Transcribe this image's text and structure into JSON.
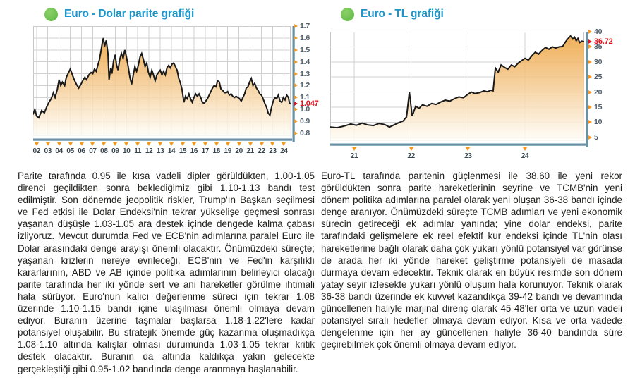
{
  "colors": {
    "accent_blue": "#1d95c9",
    "bullet_green": "#63bd47",
    "tick_orange": "#f5991e",
    "value_red": "#e30f1b",
    "line": "#1a1a1a",
    "grid": "#d2d2d2",
    "plot_border": "#c6c6c6",
    "frame_dark": "#5b7d93",
    "frame_light": "#cfe5f0",
    "fill_top": "#eca13c",
    "fill_mid": "#f5cd96",
    "fill_bottom": "#fffef9"
  },
  "chart_data": [
    {
      "type": "area",
      "id": "eur-usd",
      "title": "Euro - Dolar parite grafiği",
      "current_value": 1.047,
      "current_value_label": "1.047",
      "x_tick_labels": [
        "02",
        "03",
        "04",
        "05",
        "06",
        "07",
        "08",
        "09",
        "10",
        "11",
        "12",
        "13",
        "14",
        "15",
        "16",
        "17",
        "18",
        "19",
        "20",
        "21",
        "22",
        "23",
        "24"
      ],
      "x_tick_values": [
        2002,
        2003,
        2004,
        2005,
        2006,
        2007,
        2008,
        2009,
        2010,
        2011,
        2012,
        2013,
        2014,
        2015,
        2016,
        2017,
        2018,
        2019,
        2020,
        2021,
        2022,
        2023,
        2024
      ],
      "y_tick_values": [
        1.7,
        1.6,
        1.5,
        1.4,
        1.3,
        1.2,
        1.1,
        1.0,
        0.9,
        0.8
      ],
      "y_tick_labels": [
        "1.7",
        "1.6",
        "1.5",
        "1.4",
        "1.3",
        "1.2",
        "1.1",
        "1.0",
        "0.9",
        "0.8"
      ],
      "x_domain": [
        2001.7,
        2024.6
      ],
      "y_domain": [
        0.776,
        1.7
      ],
      "grid": true,
      "x": [
        2001.7,
        2001.85,
        2002.0,
        2002.2,
        2002.45,
        2002.7,
        2002.9,
        2003.1,
        2003.3,
        2003.5,
        2003.65,
        2003.85,
        2004.0,
        2004.15,
        2004.3,
        2004.5,
        2004.65,
        2004.85,
        2005.0,
        2005.15,
        2005.35,
        2005.55,
        2005.75,
        2005.95,
        2006.1,
        2006.3,
        2006.45,
        2006.65,
        2006.85,
        2007.0,
        2007.15,
        2007.3,
        2007.45,
        2007.6,
        2007.75,
        2007.85,
        2007.95,
        2008.05,
        2008.2,
        2008.35,
        2008.45,
        2008.6,
        2008.7,
        2008.85,
        2009.0,
        2009.1,
        2009.25,
        2009.4,
        2009.55,
        2009.7,
        2009.85,
        2010.0,
        2010.15,
        2010.3,
        2010.45,
        2010.6,
        2010.75,
        2010.9,
        2011.05,
        2011.2,
        2011.35,
        2011.5,
        2011.65,
        2011.8,
        2011.95,
        2012.1,
        2012.25,
        2012.4,
        2012.55,
        2012.7,
        2012.85,
        2013.0,
        2013.15,
        2013.3,
        2013.45,
        2013.6,
        2013.75,
        2013.9,
        2014.05,
        2014.2,
        2014.35,
        2014.5,
        2014.65,
        2014.8,
        2014.95,
        2015.1,
        2015.25,
        2015.4,
        2015.55,
        2015.7,
        2015.85,
        2016.0,
        2016.15,
        2016.3,
        2016.45,
        2016.6,
        2016.75,
        2016.9,
        2017.05,
        2017.2,
        2017.35,
        2017.5,
        2017.65,
        2017.8,
        2017.95,
        2018.1,
        2018.25,
        2018.4,
        2018.55,
        2018.7,
        2018.85,
        2019.0,
        2019.15,
        2019.3,
        2019.45,
        2019.6,
        2019.75,
        2019.9,
        2020.05,
        2020.2,
        2020.35,
        2020.5,
        2020.65,
        2020.8,
        2020.95,
        2021.1,
        2021.25,
        2021.4,
        2021.55,
        2021.7,
        2021.85,
        2022.0,
        2022.15,
        2022.3,
        2022.45,
        2022.6,
        2022.75,
        2022.9,
        2023.05,
        2023.2,
        2023.35,
        2023.5,
        2023.65,
        2023.8,
        2023.95,
        2024.1,
        2024.25,
        2024.4,
        2024.5,
        2024.6
      ],
      "y": [
        0.96,
        1.0,
        0.945,
        0.93,
        0.99,
        0.97,
        1.02,
        1.06,
        1.09,
        1.14,
        1.1,
        1.17,
        1.25,
        1.2,
        1.23,
        1.2,
        1.27,
        1.31,
        1.34,
        1.3,
        1.25,
        1.21,
        1.18,
        1.21,
        1.24,
        1.27,
        1.25,
        1.29,
        1.31,
        1.3,
        1.34,
        1.32,
        1.37,
        1.42,
        1.5,
        1.56,
        1.6,
        1.53,
        1.58,
        1.47,
        1.25,
        1.35,
        1.3,
        1.41,
        1.46,
        1.38,
        1.33,
        1.42,
        1.47,
        1.43,
        1.5,
        1.44,
        1.36,
        1.27,
        1.21,
        1.29,
        1.36,
        1.32,
        1.37,
        1.44,
        1.47,
        1.42,
        1.36,
        1.39,
        1.31,
        1.27,
        1.33,
        1.29,
        1.24,
        1.29,
        1.31,
        1.33,
        1.29,
        1.32,
        1.29,
        1.35,
        1.37,
        1.35,
        1.38,
        1.39,
        1.36,
        1.33,
        1.26,
        1.22,
        1.16,
        1.06,
        1.11,
        1.09,
        1.13,
        1.09,
        1.06,
        1.1,
        1.13,
        1.11,
        1.13,
        1.1,
        1.06,
        1.05,
        1.07,
        1.09,
        1.12,
        1.15,
        1.18,
        1.2,
        1.19,
        1.24,
        1.23,
        1.17,
        1.16,
        1.14,
        1.14,
        1.15,
        1.12,
        1.13,
        1.11,
        1.1,
        1.11,
        1.1,
        1.09,
        1.07,
        1.1,
        1.13,
        1.18,
        1.19,
        1.23,
        1.26,
        1.2,
        1.22,
        1.18,
        1.16,
        1.13,
        1.12,
        1.09,
        1.05,
        1.02,
        0.97,
        0.95,
        1.02,
        1.07,
        1.1,
        1.09,
        1.12,
        1.07,
        1.06,
        1.1,
        1.08,
        1.12,
        1.1,
        1.05,
        1.047
      ]
    },
    {
      "type": "area",
      "id": "eur-tl",
      "title": "Euro - TL grafiği",
      "current_value": 36.72,
      "current_value_label": "36.72",
      "x_tick_labels": [
        "21",
        "22",
        "23",
        "24"
      ],
      "x_tick_values": [
        2021,
        2022,
        2023,
        2024
      ],
      "y_tick_values": [
        40,
        35,
        30,
        25,
        20,
        15,
        10,
        5
      ],
      "y_tick_labels": [
        "40",
        "35",
        "30",
        "25",
        "20",
        "15",
        "10",
        "5"
      ],
      "x_domain": [
        2020.58,
        2025.04
      ],
      "y_domain": [
        3.78,
        40
      ],
      "grid": true,
      "x": [
        2020.58,
        2020.7,
        2020.82,
        2020.94,
        2021.04,
        2021.14,
        2021.24,
        2021.34,
        2021.44,
        2021.54,
        2021.62,
        2021.7,
        2021.78,
        2021.86,
        2021.92,
        2021.97,
        2022.02,
        2022.08,
        2022.14,
        2022.2,
        2022.28,
        2022.36,
        2022.44,
        2022.52,
        2022.6,
        2022.68,
        2022.76,
        2022.84,
        2022.92,
        2023.0,
        2023.06,
        2023.12,
        2023.2,
        2023.28,
        2023.34,
        2023.4,
        2023.44,
        2023.48,
        2023.53,
        2023.58,
        2023.64,
        2023.7,
        2023.76,
        2023.82,
        2023.88,
        2023.94,
        2024.0,
        2024.06,
        2024.12,
        2024.18,
        2024.24,
        2024.3,
        2024.36,
        2024.42,
        2024.48,
        2024.54,
        2024.6,
        2024.66,
        2024.72,
        2024.76,
        2024.8,
        2024.84,
        2024.87,
        2024.9,
        2024.93,
        2024.96,
        2025.0,
        2025.04
      ],
      "y": [
        8.4,
        8.2,
        8.7,
        9.4,
        9.0,
        9.7,
        9.1,
        8.9,
        9.6,
        9.2,
        8.4,
        9.1,
        9.8,
        10.4,
        11.8,
        20.0,
        12.0,
        15.3,
        14.6,
        15.8,
        15.3,
        16.2,
        15.9,
        16.7,
        17.3,
        17.0,
        17.8,
        18.4,
        18.1,
        19.3,
        20.0,
        19.5,
        19.8,
        20.4,
        20.1,
        20.6,
        20.4,
        28.0,
        26.6,
        29.0,
        28.2,
        27.6,
        29.0,
        28.4,
        29.6,
        30.4,
        31.2,
        30.6,
        32.0,
        33.2,
        32.6,
        33.8,
        34.8,
        34.2,
        35.0,
        34.6,
        35.0,
        35.1,
        36.9,
        37.8,
        38.6,
        37.6,
        38.2,
        37.0,
        37.8,
        36.4,
        36.9,
        36.72
      ]
    }
  ],
  "articles": [
    {
      "text": "Parite tarafında 0.95 ile kısa vadeli dipler görüldükten, 1.00-1.05 direnci geçildikten sonra beklediğimiz gibi 1.10-1.13 bandı test edilmiştir. Son dönemde jeopolitik riskler, Trump'ın Başkan seçilmesi ve Fed etkisi ile Dolar Endeksi'nin tekrar yükselişe geçmesi sonrası yaşanan düşüşle 1.03-1.05 ara destek içinde dengede kalma çabası izliyoruz. Mevcut durumda Fed ve ECB'nin adımlarına paralel Euro ile Dolar arasındaki denge arayışı önemli olacaktır. Önümüzdeki süreçte; yaşanan krizlerin nereye evrileceği, ECB'nin ve Fed'in karşılıklı kararlarının, ABD ve AB içinde politika adımlarının belirleyici olacağı parite tarafında her iki yönde sert ve ani hareketler görülme ihtimali hala sürüyor. Euro'nun kalıcı değerlenme süreci için tekrar 1.08 üzerinde 1.10-1.15 bandı içine ulaşılması önemli olmaya devam ediyor. Buranın üzerine taşmalar başlarsa 1.18-1.22'lere kadar potansiyel oluşabilir. Bu stratejik önemde güç kazanma oluşmadıkça 1.08-1.10 altında kalışlar olması durumunda 1.03-1.05 tekrar kritik destek olacaktır. Buranın da altında kaldıkça yakın gelecekte gerçekleştiği gibi 0.95-1.02 bandında denge aranmaya başlanabilir."
    },
    {
      "text": "Euro-TL tarafında paritenin güçlenmesi ile 38.60 ile yeni rekor görüldükten sonra parite hareketlerinin seyrine ve TCMB'nin yeni dönem politika adımlarına paralel olarak yeni oluşan 36-38 bandı içinde denge aranıyor. Önümüzdeki süreçte TCMB adımları ve yeni ekonomik sürecin getireceği ek adımlar yanında; yine dolar endeksi, parite tarafındaki gelişmelere ek reel efektif kur endeksi içinde TL'nin olası hareketlerine bağlı olarak daha çok yukarı yönlü potansiyel var görünse de arada her iki yönde hareket geliştirme potansiyeli de masada durmaya devam edecektir. Teknik olarak en büyük resimde son dönem yatay seyir izlesekte yukarı yönlü oluşum hala korunuyor. Teknik olarak 36-38 bandı üzerinde ek kuvvet kazandıkça 39-42 bandı ve devamında güncellenen haliyle marjinal direnç olarak 45-48'ler orta ve uzun vadeli potansiyel sıralı hedefler olmaya devam ediyor. Kısa ve orta vadede dengelenme için her ay güncellenen haliyle 36-40 bandında süre geçirebilmek çok önemli olmaya devam ediyor."
    }
  ]
}
